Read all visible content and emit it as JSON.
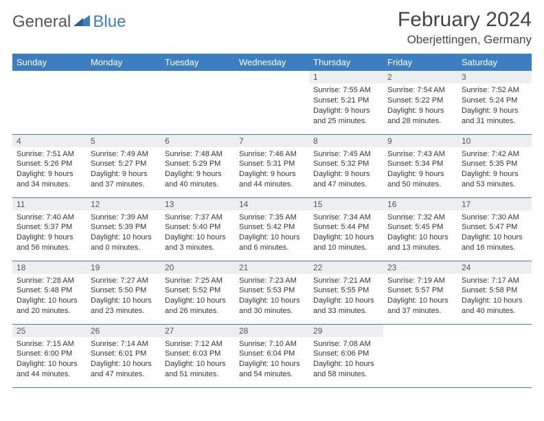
{
  "brand": {
    "name1": "General",
    "name2": "Blue"
  },
  "title": "February 2024",
  "location": "Oberjettingen, Germany",
  "colors": {
    "header_bg": "#3d7ec1",
    "header_text": "#ffffff",
    "daynum_bg": "#eceeef",
    "row_border": "#3d7ec1",
    "body_text": "#333333",
    "title_text": "#444444",
    "background": "#ffffff"
  },
  "fonts": {
    "title_size": 30,
    "location_size": 17,
    "header_size": 13,
    "daynum_size": 12,
    "cell_size": 11
  },
  "weekdays": [
    "Sunday",
    "Monday",
    "Tuesday",
    "Wednesday",
    "Thursday",
    "Friday",
    "Saturday"
  ],
  "weeks": [
    [
      null,
      null,
      null,
      null,
      {
        "n": "1",
        "sunrise": "7:55 AM",
        "sunset": "5:21 PM",
        "daylight": "9 hours and 25 minutes."
      },
      {
        "n": "2",
        "sunrise": "7:54 AM",
        "sunset": "5:22 PM",
        "daylight": "9 hours and 28 minutes."
      },
      {
        "n": "3",
        "sunrise": "7:52 AM",
        "sunset": "5:24 PM",
        "daylight": "9 hours and 31 minutes."
      }
    ],
    [
      {
        "n": "4",
        "sunrise": "7:51 AM",
        "sunset": "5:26 PM",
        "daylight": "9 hours and 34 minutes."
      },
      {
        "n": "5",
        "sunrise": "7:49 AM",
        "sunset": "5:27 PM",
        "daylight": "9 hours and 37 minutes."
      },
      {
        "n": "6",
        "sunrise": "7:48 AM",
        "sunset": "5:29 PM",
        "daylight": "9 hours and 40 minutes."
      },
      {
        "n": "7",
        "sunrise": "7:46 AM",
        "sunset": "5:31 PM",
        "daylight": "9 hours and 44 minutes."
      },
      {
        "n": "8",
        "sunrise": "7:45 AM",
        "sunset": "5:32 PM",
        "daylight": "9 hours and 47 minutes."
      },
      {
        "n": "9",
        "sunrise": "7:43 AM",
        "sunset": "5:34 PM",
        "daylight": "9 hours and 50 minutes."
      },
      {
        "n": "10",
        "sunrise": "7:42 AM",
        "sunset": "5:35 PM",
        "daylight": "9 hours and 53 minutes."
      }
    ],
    [
      {
        "n": "11",
        "sunrise": "7:40 AM",
        "sunset": "5:37 PM",
        "daylight": "9 hours and 56 minutes."
      },
      {
        "n": "12",
        "sunrise": "7:39 AM",
        "sunset": "5:39 PM",
        "daylight": "10 hours and 0 minutes."
      },
      {
        "n": "13",
        "sunrise": "7:37 AM",
        "sunset": "5:40 PM",
        "daylight": "10 hours and 3 minutes."
      },
      {
        "n": "14",
        "sunrise": "7:35 AM",
        "sunset": "5:42 PM",
        "daylight": "10 hours and 6 minutes."
      },
      {
        "n": "15",
        "sunrise": "7:34 AM",
        "sunset": "5:44 PM",
        "daylight": "10 hours and 10 minutes."
      },
      {
        "n": "16",
        "sunrise": "7:32 AM",
        "sunset": "5:45 PM",
        "daylight": "10 hours and 13 minutes."
      },
      {
        "n": "17",
        "sunrise": "7:30 AM",
        "sunset": "5:47 PM",
        "daylight": "10 hours and 16 minutes."
      }
    ],
    [
      {
        "n": "18",
        "sunrise": "7:28 AM",
        "sunset": "5:48 PM",
        "daylight": "10 hours and 20 minutes."
      },
      {
        "n": "19",
        "sunrise": "7:27 AM",
        "sunset": "5:50 PM",
        "daylight": "10 hours and 23 minutes."
      },
      {
        "n": "20",
        "sunrise": "7:25 AM",
        "sunset": "5:52 PM",
        "daylight": "10 hours and 26 minutes."
      },
      {
        "n": "21",
        "sunrise": "7:23 AM",
        "sunset": "5:53 PM",
        "daylight": "10 hours and 30 minutes."
      },
      {
        "n": "22",
        "sunrise": "7:21 AM",
        "sunset": "5:55 PM",
        "daylight": "10 hours and 33 minutes."
      },
      {
        "n": "23",
        "sunrise": "7:19 AM",
        "sunset": "5:57 PM",
        "daylight": "10 hours and 37 minutes."
      },
      {
        "n": "24",
        "sunrise": "7:17 AM",
        "sunset": "5:58 PM",
        "daylight": "10 hours and 40 minutes."
      }
    ],
    [
      {
        "n": "25",
        "sunrise": "7:15 AM",
        "sunset": "6:00 PM",
        "daylight": "10 hours and 44 minutes."
      },
      {
        "n": "26",
        "sunrise": "7:14 AM",
        "sunset": "6:01 PM",
        "daylight": "10 hours and 47 minutes."
      },
      {
        "n": "27",
        "sunrise": "7:12 AM",
        "sunset": "6:03 PM",
        "daylight": "10 hours and 51 minutes."
      },
      {
        "n": "28",
        "sunrise": "7:10 AM",
        "sunset": "6:04 PM",
        "daylight": "10 hours and 54 minutes."
      },
      {
        "n": "29",
        "sunrise": "7:08 AM",
        "sunset": "6:06 PM",
        "daylight": "10 hours and 58 minutes."
      },
      null,
      null
    ]
  ],
  "labels": {
    "sunrise": "Sunrise:",
    "sunset": "Sunset:",
    "daylight": "Daylight:"
  }
}
